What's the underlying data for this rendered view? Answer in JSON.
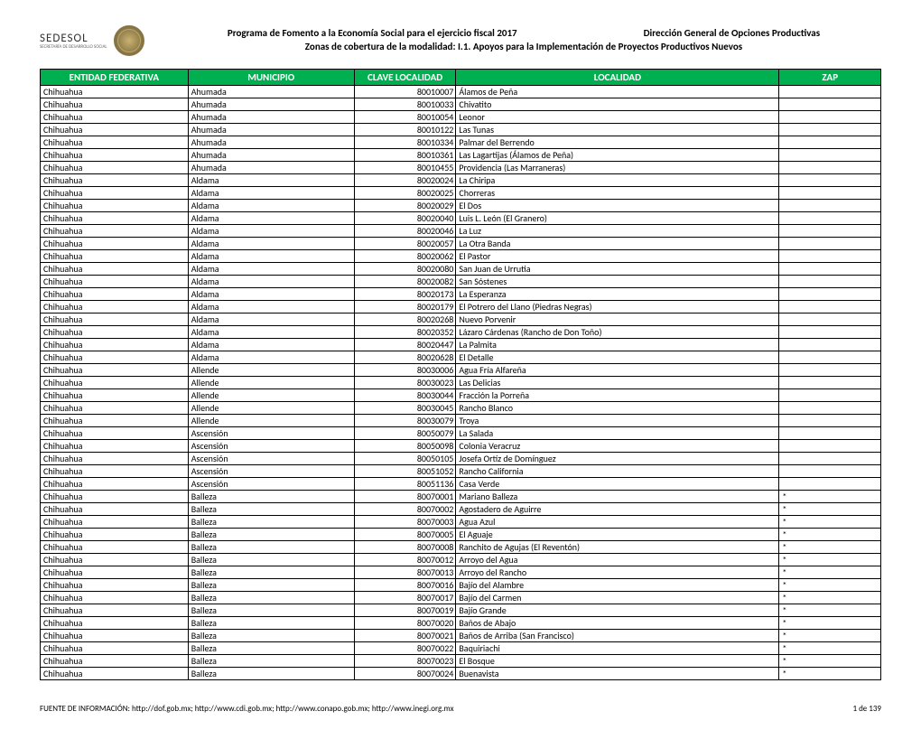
{
  "header": {
    "logo_name": "SEDESOL",
    "logo_sub": "SECRETARÍA DE DESARROLLO SOCIAL",
    "title_left": "Programa de Fomento a la Economía Social para el ejercicio fiscal 2017",
    "title_right": "Dirección General de Opciones Productivas",
    "title_sub": "Zonas de cobertura de la modalidad: I.1. Apoyos para la Implementación de Proyectos Productivos Nuevos"
  },
  "table": {
    "headers": {
      "c1": "ENTIDAD FEDERATIVA",
      "c2": "MUNICIPIO",
      "c3": "CLAVE LOCALIDAD",
      "c4": "LOCALIDAD",
      "c5": "ZAP"
    },
    "rows": [
      {
        "ent": "Chihuahua",
        "mun": "Ahumada",
        "clave": "80010007",
        "loc": "Álamos de Peña",
        "zap": ""
      },
      {
        "ent": "Chihuahua",
        "mun": "Ahumada",
        "clave": "80010033",
        "loc": "Chivatito",
        "zap": ""
      },
      {
        "ent": "Chihuahua",
        "mun": "Ahumada",
        "clave": "80010054",
        "loc": "Leonor",
        "zap": ""
      },
      {
        "ent": "Chihuahua",
        "mun": "Ahumada",
        "clave": "80010122",
        "loc": "Las Tunas",
        "zap": ""
      },
      {
        "ent": "Chihuahua",
        "mun": "Ahumada",
        "clave": "80010334",
        "loc": "Palmar del Berrendo",
        "zap": ""
      },
      {
        "ent": "Chihuahua",
        "mun": "Ahumada",
        "clave": "80010361",
        "loc": "Las Lagartijas (Álamos de Peña)",
        "zap": ""
      },
      {
        "ent": "Chihuahua",
        "mun": "Ahumada",
        "clave": "80010455",
        "loc": "Providencia (Las Marraneras)",
        "zap": ""
      },
      {
        "ent": "Chihuahua",
        "mun": "Aldama",
        "clave": "80020024",
        "loc": "La Chiripa",
        "zap": ""
      },
      {
        "ent": "Chihuahua",
        "mun": "Aldama",
        "clave": "80020025",
        "loc": "Chorreras",
        "zap": ""
      },
      {
        "ent": "Chihuahua",
        "mun": "Aldama",
        "clave": "80020029",
        "loc": "El Dos",
        "zap": ""
      },
      {
        "ent": "Chihuahua",
        "mun": "Aldama",
        "clave": "80020040",
        "loc": "Luis L. León (El Granero)",
        "zap": ""
      },
      {
        "ent": "Chihuahua",
        "mun": "Aldama",
        "clave": "80020046",
        "loc": "La Luz",
        "zap": ""
      },
      {
        "ent": "Chihuahua",
        "mun": "Aldama",
        "clave": "80020057",
        "loc": "La Otra Banda",
        "zap": ""
      },
      {
        "ent": "Chihuahua",
        "mun": "Aldama",
        "clave": "80020062",
        "loc": "El Pastor",
        "zap": ""
      },
      {
        "ent": "Chihuahua",
        "mun": "Aldama",
        "clave": "80020080",
        "loc": "San Juan de Urrutia",
        "zap": ""
      },
      {
        "ent": "Chihuahua",
        "mun": "Aldama",
        "clave": "80020082",
        "loc": "San Sóstenes",
        "zap": ""
      },
      {
        "ent": "Chihuahua",
        "mun": "Aldama",
        "clave": "80020173",
        "loc": "La Esperanza",
        "zap": ""
      },
      {
        "ent": "Chihuahua",
        "mun": "Aldama",
        "clave": "80020179",
        "loc": "El Potrero del Llano (Piedras Negras)",
        "zap": ""
      },
      {
        "ent": "Chihuahua",
        "mun": "Aldama",
        "clave": "80020268",
        "loc": "Nuevo Porvenir",
        "zap": ""
      },
      {
        "ent": "Chihuahua",
        "mun": "Aldama",
        "clave": "80020352",
        "loc": "Lázaro Cárdenas (Rancho de Don Toño)",
        "zap": ""
      },
      {
        "ent": "Chihuahua",
        "mun": "Aldama",
        "clave": "80020447",
        "loc": "La Palmita",
        "zap": ""
      },
      {
        "ent": "Chihuahua",
        "mun": "Aldama",
        "clave": "80020628",
        "loc": "El Detalle",
        "zap": ""
      },
      {
        "ent": "Chihuahua",
        "mun": "Allende",
        "clave": "80030006",
        "loc": "Agua Fría Alfareña",
        "zap": ""
      },
      {
        "ent": "Chihuahua",
        "mun": "Allende",
        "clave": "80030023",
        "loc": "Las Delicias",
        "zap": ""
      },
      {
        "ent": "Chihuahua",
        "mun": "Allende",
        "clave": "80030044",
        "loc": "Fracción la Porreña",
        "zap": ""
      },
      {
        "ent": "Chihuahua",
        "mun": "Allende",
        "clave": "80030045",
        "loc": "Rancho Blanco",
        "zap": ""
      },
      {
        "ent": "Chihuahua",
        "mun": "Allende",
        "clave": "80030079",
        "loc": "Troya",
        "zap": ""
      },
      {
        "ent": "Chihuahua",
        "mun": "Ascensión",
        "clave": "80050079",
        "loc": "La Salada",
        "zap": ""
      },
      {
        "ent": "Chihuahua",
        "mun": "Ascensión",
        "clave": "80050098",
        "loc": "Colonia Veracruz",
        "zap": ""
      },
      {
        "ent": "Chihuahua",
        "mun": "Ascensión",
        "clave": "80050105",
        "loc": "Josefa Ortíz de Domínguez",
        "zap": ""
      },
      {
        "ent": "Chihuahua",
        "mun": "Ascensión",
        "clave": "80051052",
        "loc": "Rancho California",
        "zap": ""
      },
      {
        "ent": "Chihuahua",
        "mun": "Ascensión",
        "clave": "80051136",
        "loc": "Casa Verde",
        "zap": ""
      },
      {
        "ent": "Chihuahua",
        "mun": "Balleza",
        "clave": "80070001",
        "loc": "Mariano Balleza",
        "zap": "*"
      },
      {
        "ent": "Chihuahua",
        "mun": "Balleza",
        "clave": "80070002",
        "loc": "Agostadero de Aguirre",
        "zap": "*"
      },
      {
        "ent": "Chihuahua",
        "mun": "Balleza",
        "clave": "80070003",
        "loc": "Agua Azul",
        "zap": "*"
      },
      {
        "ent": "Chihuahua",
        "mun": "Balleza",
        "clave": "80070005",
        "loc": "El Aguaje",
        "zap": "*"
      },
      {
        "ent": "Chihuahua",
        "mun": "Balleza",
        "clave": "80070008",
        "loc": "Ranchito de Agujas (El Reventón)",
        "zap": "*"
      },
      {
        "ent": "Chihuahua",
        "mun": "Balleza",
        "clave": "80070012",
        "loc": "Arroyo del Agua",
        "zap": "*"
      },
      {
        "ent": "Chihuahua",
        "mun": "Balleza",
        "clave": "80070013",
        "loc": "Arroyo del Rancho",
        "zap": "*"
      },
      {
        "ent": "Chihuahua",
        "mun": "Balleza",
        "clave": "80070016",
        "loc": "Bajío del Alambre",
        "zap": "*"
      },
      {
        "ent": "Chihuahua",
        "mun": "Balleza",
        "clave": "80070017",
        "loc": "Bajío del Carmen",
        "zap": "*"
      },
      {
        "ent": "Chihuahua",
        "mun": "Balleza",
        "clave": "80070019",
        "loc": "Bajío Grande",
        "zap": "*"
      },
      {
        "ent": "Chihuahua",
        "mun": "Balleza",
        "clave": "80070020",
        "loc": "Baños de Abajo",
        "zap": "*"
      },
      {
        "ent": "Chihuahua",
        "mun": "Balleza",
        "clave": "80070021",
        "loc": "Baños de Arriba (San Francisco)",
        "zap": "*"
      },
      {
        "ent": "Chihuahua",
        "mun": "Balleza",
        "clave": "80070022",
        "loc": "Baquiriachi",
        "zap": "*"
      },
      {
        "ent": "Chihuahua",
        "mun": "Balleza",
        "clave": "80070023",
        "loc": "El Bosque",
        "zap": "*"
      },
      {
        "ent": "Chihuahua",
        "mun": "Balleza",
        "clave": "80070024",
        "loc": "Buenavista",
        "zap": "*"
      }
    ]
  },
  "footer": {
    "source": "FUENTE DE INFORMACIÓN: http://dof.gob.mx; http://www.cdi.gob.mx; http://www.conapo.gob.mx; http://www.inegi.org.mx",
    "page": "1 de 139"
  },
  "style": {
    "header_bg": "#00b050",
    "header_fg": "#ffffff",
    "border": "#000000"
  }
}
